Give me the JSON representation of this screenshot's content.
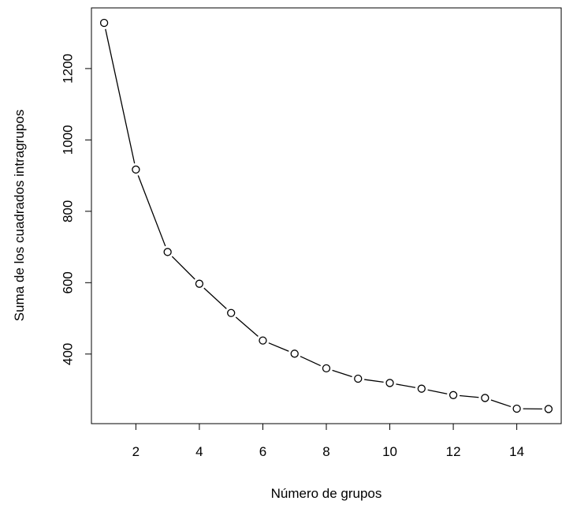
{
  "chart_data": {
    "type": "line",
    "title": "",
    "xlabel": "Número de grupos",
    "ylabel": "Suma de los cuadrados intragrupos",
    "x": [
      1,
      2,
      3,
      4,
      5,
      6,
      7,
      8,
      9,
      10,
      11,
      12,
      13,
      14,
      15
    ],
    "series": [
      {
        "values": [
          1328,
          917,
          686,
          597,
          515,
          438,
          401,
          360,
          331,
          319,
          303,
          285,
          277,
          247,
          246
        ]
      }
    ],
    "xlim": [
      0.6,
      15.4
    ],
    "ylim": [
      205,
      1370
    ],
    "xticks": [
      2,
      4,
      6,
      8,
      10,
      12,
      14
    ],
    "yticks": [
      400,
      600,
      800,
      1000,
      1200
    ],
    "grid": false,
    "legend": "none",
    "colors": {
      "line": "#000000",
      "marker_fill": "#ffffff",
      "marker_stroke": "#000000"
    }
  }
}
